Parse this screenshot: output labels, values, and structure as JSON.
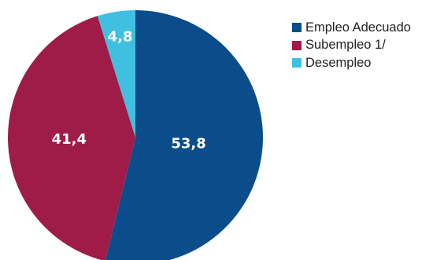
{
  "chart_data": {
    "type": "pie",
    "start_angle_deg": 0,
    "direction": "clockwise",
    "categories": [
      "Empleo Adecuado",
      "Subempleo 1/",
      "Desempleo"
    ],
    "values": [
      53.8,
      41.4,
      4.8
    ],
    "value_labels": [
      "53,8",
      "41,4",
      "4,8"
    ],
    "colors": [
      "#0b4d8a",
      "#9e1c47",
      "#40c0e0"
    ],
    "legend_position": "right-top",
    "title": ""
  }
}
